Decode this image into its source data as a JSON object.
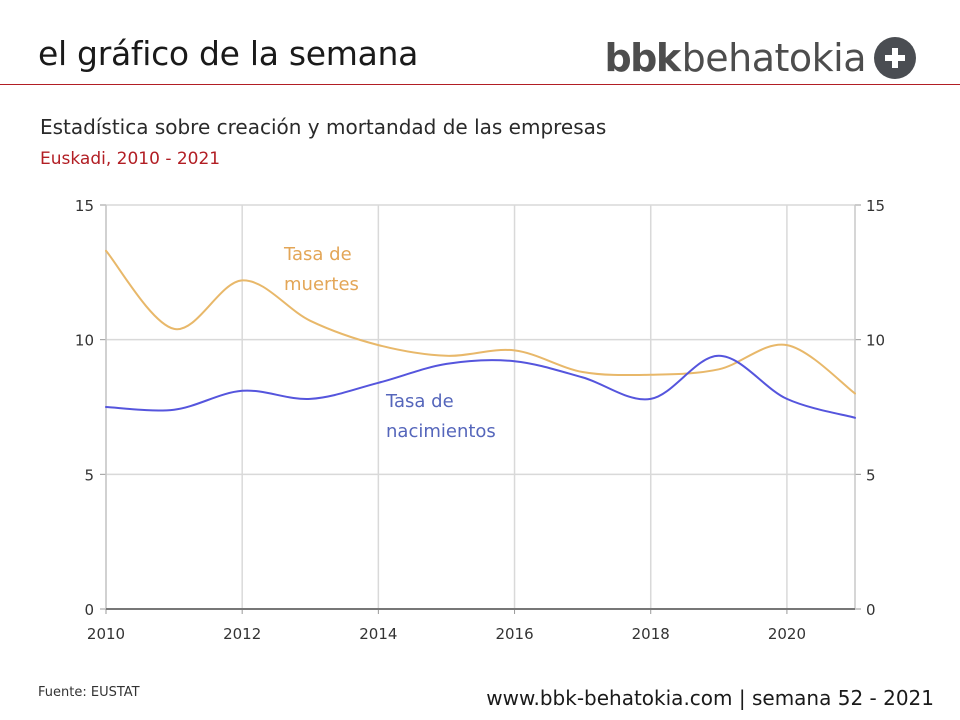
{
  "header": {
    "title": "el gráfico de la semana",
    "brand_bbk": "bbk",
    "brand_name": "behatokia"
  },
  "subtitle": "Estadística sobre creación y mortandad de las empresas",
  "subsubtitle": "Euskadi, 2010 - 2021",
  "colors": {
    "accent": "#b21e24",
    "series_muertes": "#e8b86a",
    "series_nacimientos": "#5555dd",
    "label_muertes": "#e3a657",
    "label_nacimientos": "#5566bb",
    "grid": "#d9d9d9"
  },
  "chart_data": {
    "type": "line",
    "x": [
      2010,
      2011,
      2012,
      2013,
      2014,
      2015,
      2016,
      2017,
      2018,
      2019,
      2020,
      2021
    ],
    "xlim": [
      2010,
      2021
    ],
    "ylim": [
      0,
      15
    ],
    "x_ticks": [
      "2010",
      "2012",
      "2014",
      "2016",
      "2018",
      "2020"
    ],
    "y_ticks_left": [
      "0",
      "5",
      "10",
      "15"
    ],
    "y_ticks_right": [
      "0",
      "5",
      "10",
      "15"
    ],
    "series": [
      {
        "name": "Tasa de muertes",
        "label_lines": [
          "Tasa de",
          "muertes"
        ],
        "values": [
          13.3,
          10.4,
          12.2,
          10.7,
          9.8,
          9.4,
          9.6,
          8.8,
          8.7,
          8.9,
          9.8,
          8.0
        ]
      },
      {
        "name": "Tasa de nacimientos",
        "label_lines": [
          "Tasa de",
          "nacimientos"
        ],
        "values": [
          7.5,
          7.4,
          8.1,
          7.8,
          8.4,
          9.1,
          9.2,
          8.6,
          7.8,
          9.4,
          7.8,
          7.1
        ]
      }
    ],
    "grid": true,
    "xlabel": "",
    "ylabel": ""
  },
  "footer": {
    "source": "Fuente: EUSTAT",
    "url": "www.bbk-behatokia.com | semana 52 - 2021"
  }
}
